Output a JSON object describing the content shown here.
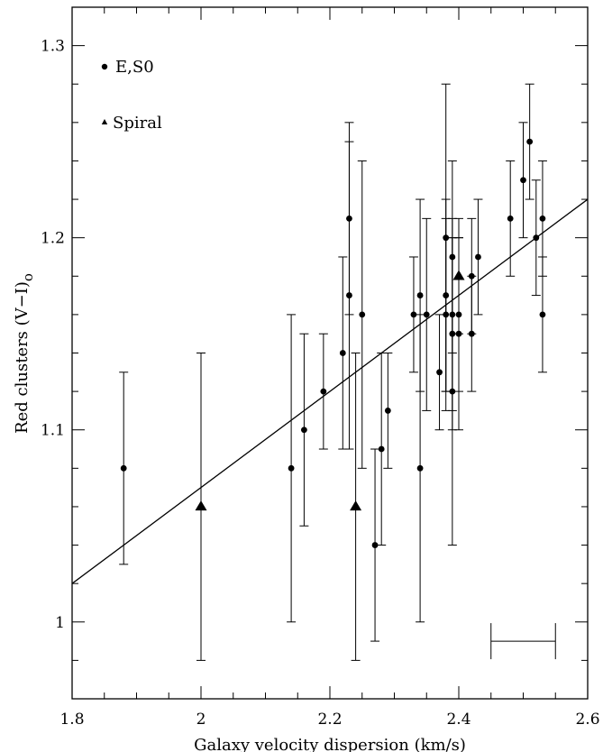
{
  "chart_data": {
    "type": "scatter",
    "xlabel": "Galaxy velocity dispersion (km/s)",
    "ylabel": "Red clusters (V−I)",
    "ylabel_subscript": "o",
    "xlim": [
      1.8,
      2.6
    ],
    "ylim": [
      0.96,
      1.32
    ],
    "x_ticks": [
      1.8,
      2,
      2.2,
      2.4,
      2.6
    ],
    "x_tick_labels": [
      "1.8",
      "2",
      "2.2",
      "2.4",
      "2.6"
    ],
    "y_ticks": [
      1,
      1.1,
      1.2,
      1.3
    ],
    "y_tick_labels": [
      "1",
      "1.1",
      "1.2",
      "1.3"
    ],
    "legend": [
      {
        "label": "E,S0",
        "marker": "circle"
      },
      {
        "label": "Spiral",
        "marker": "triangle"
      }
    ],
    "series": [
      {
        "name": "E,S0",
        "marker": "circle",
        "points": [
          {
            "x": 1.88,
            "y": 1.08,
            "lo": 1.03,
            "hi": 1.13
          },
          {
            "x": 2.14,
            "y": 1.08,
            "lo": 1.0,
            "hi": 1.16
          },
          {
            "x": 2.16,
            "y": 1.1,
            "lo": 1.05,
            "hi": 1.15
          },
          {
            "x": 2.19,
            "y": 1.12,
            "lo": 1.09,
            "hi": 1.15
          },
          {
            "x": 2.22,
            "y": 1.14,
            "lo": 1.09,
            "hi": 1.19
          },
          {
            "x": 2.23,
            "y": 1.21,
            "lo": 1.16,
            "hi": 1.26
          },
          {
            "x": 2.23,
            "y": 1.17,
            "lo": 1.09,
            "hi": 1.25
          },
          {
            "x": 2.25,
            "y": 1.16,
            "lo": 1.08,
            "hi": 1.24
          },
          {
            "x": 2.27,
            "y": 1.04,
            "lo": 0.99,
            "hi": 1.09
          },
          {
            "x": 2.28,
            "y": 1.09,
            "lo": 1.04,
            "hi": 1.14
          },
          {
            "x": 2.29,
            "y": 1.11,
            "lo": 1.08,
            "hi": 1.14
          },
          {
            "x": 2.33,
            "y": 1.16,
            "lo": 1.13,
            "hi": 1.19
          },
          {
            "x": 2.34,
            "y": 1.17,
            "lo": 1.12,
            "hi": 1.22
          },
          {
            "x": 2.34,
            "y": 1.08,
            "lo": 1.0,
            "hi": 1.16
          },
          {
            "x": 2.35,
            "y": 1.16,
            "lo": 1.11,
            "hi": 1.21
          },
          {
            "x": 2.37,
            "y": 1.13,
            "lo": 1.1,
            "hi": 1.16
          },
          {
            "x": 2.38,
            "y": 1.2,
            "lo": 1.12,
            "hi": 1.28
          },
          {
            "x": 2.38,
            "y": 1.17,
            "lo": 1.12,
            "hi": 1.22
          },
          {
            "x": 2.38,
            "y": 1.16,
            "lo": 1.11,
            "hi": 1.21
          },
          {
            "x": 2.39,
            "y": 1.19,
            "lo": 1.14,
            "hi": 1.24
          },
          {
            "x": 2.39,
            "y": 1.16,
            "lo": 1.11,
            "hi": 1.21
          },
          {
            "x": 2.39,
            "y": 1.15,
            "lo": 1.1,
            "hi": 1.2
          },
          {
            "x": 2.39,
            "y": 1.12,
            "lo": 1.04,
            "hi": 1.2
          },
          {
            "x": 2.4,
            "y": 1.16,
            "lo": 1.12,
            "hi": 1.2
          },
          {
            "x": 2.4,
            "y": 1.15,
            "lo": 1.1,
            "hi": 1.2
          },
          {
            "x": 2.42,
            "y": 1.18,
            "lo": 1.15,
            "hi": 1.21
          },
          {
            "x": 2.42,
            "y": 1.15,
            "lo": 1.12,
            "hi": 1.18
          },
          {
            "x": 2.43,
            "y": 1.19,
            "lo": 1.16,
            "hi": 1.22
          },
          {
            "x": 2.48,
            "y": 1.21,
            "lo": 1.18,
            "hi": 1.24
          },
          {
            "x": 2.5,
            "y": 1.23,
            "lo": 1.2,
            "hi": 1.26
          },
          {
            "x": 2.51,
            "y": 1.25,
            "lo": 1.22,
            "hi": 1.28
          },
          {
            "x": 2.52,
            "y": 1.2,
            "lo": 1.17,
            "hi": 1.23
          },
          {
            "x": 2.53,
            "y": 1.21,
            "lo": 1.18,
            "hi": 1.24
          },
          {
            "x": 2.53,
            "y": 1.16,
            "lo": 1.13,
            "hi": 1.19
          }
        ]
      },
      {
        "name": "Spiral",
        "marker": "triangle",
        "points": [
          {
            "x": 2.0,
            "y": 1.06,
            "lo": 0.98,
            "hi": 1.14
          },
          {
            "x": 2.24,
            "y": 1.06,
            "lo": 0.98,
            "hi": 1.14
          },
          {
            "x": 2.4,
            "y": 1.18,
            "lo": 1.15,
            "hi": 1.21
          }
        ]
      }
    ],
    "fit_line": {
      "x": [
        1.8,
        2.6
      ],
      "y": [
        1.02,
        1.22
      ]
    },
    "x_error_bar": {
      "x1": 2.45,
      "x2": 2.55,
      "y": 0.99
    }
  }
}
